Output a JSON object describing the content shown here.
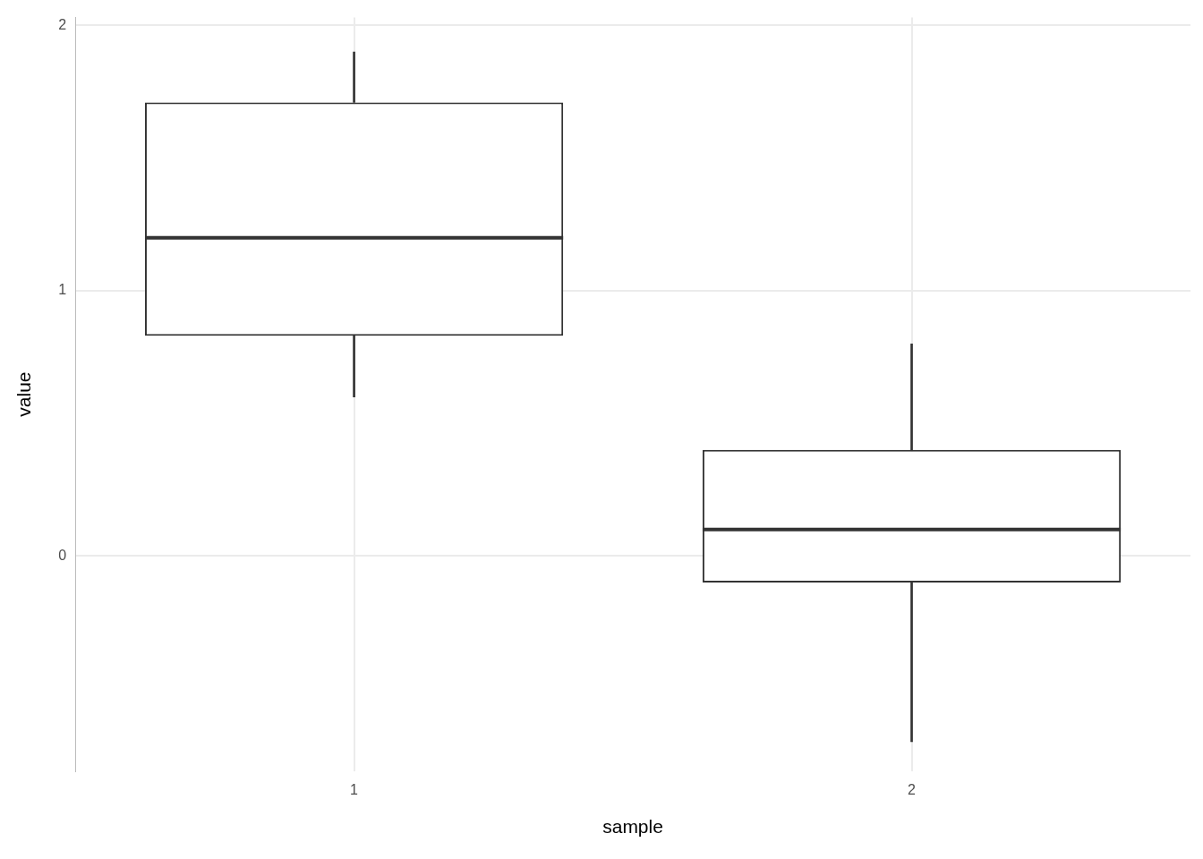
{
  "chart_data": {
    "type": "box",
    "x_label": "sample",
    "y_label": "value",
    "categories": [
      "1",
      "2"
    ],
    "min": [
      0.6,
      -0.7
    ],
    "q1": [
      0.83,
      -0.1
    ],
    "median": [
      1.2,
      0.1
    ],
    "q3": [
      1.71,
      0.4
    ],
    "max": [
      1.9,
      0.8
    ],
    "color": "#333333",
    "ylim": [
      -0.81,
      2.03
    ],
    "yticks": [
      0,
      1,
      2
    ],
    "grid": true
  }
}
